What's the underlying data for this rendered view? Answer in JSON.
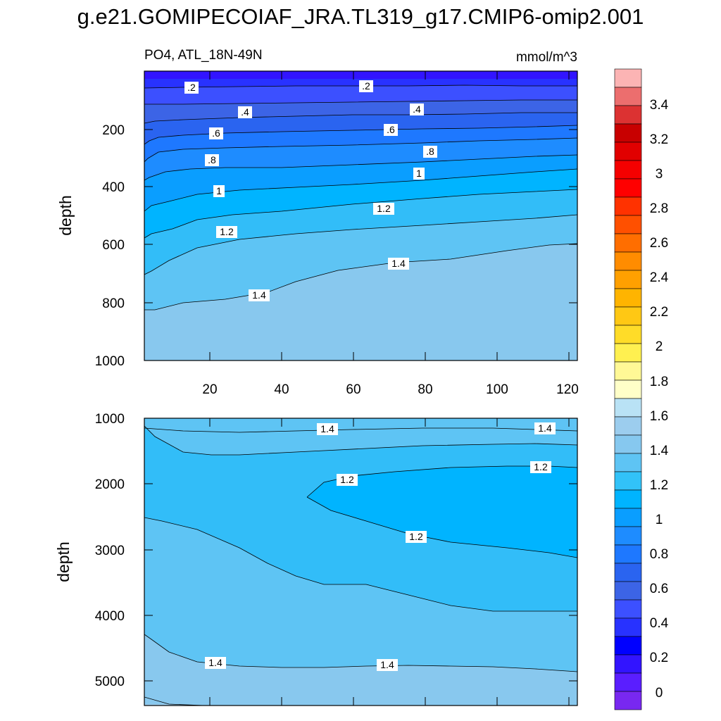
{
  "title": "g.e21.GOMIPECOIAF_JRA.TL319_g17.CMIP6-omip2.001",
  "chart_data": [
    {
      "type": "contour",
      "panel": "upper",
      "subtitle_left": "PO4, ATL_18N-49N",
      "subtitle_right": "mmol/m^3",
      "ylabel": "depth",
      "xlabel": "",
      "xlim": [
        1,
        122
      ],
      "ylim": [
        1000,
        0
      ],
      "x_ticks": [
        "20",
        "40",
        "60",
        "80",
        "100",
        "120"
      ],
      "y_ticks": [
        "200",
        "400",
        "600",
        "800",
        "1000"
      ],
      "contour_labels": [
        ".2",
        ".2",
        ".4",
        ".4",
        ".6",
        ".6",
        ".8",
        ".8",
        "1",
        "1",
        "1.2",
        "1.2",
        "1.4",
        "1.4"
      ],
      "isolines": [
        {
          "level": 0.2,
          "x": [
            1,
            122
          ],
          "depth": [
            55,
            55
          ]
        },
        {
          "level": 0.4,
          "x": [
            1,
            122
          ],
          "depth": [
            130,
            140
          ]
        },
        {
          "level": 0.6,
          "x": [
            1,
            122
          ],
          "depth": [
            210,
            195
          ]
        },
        {
          "level": 0.8,
          "x": [
            1,
            122
          ],
          "depth": [
            300,
            260
          ]
        },
        {
          "level": 1.0,
          "x": [
            1,
            122
          ],
          "depth": [
            420,
            360
          ]
        },
        {
          "level": 1.2,
          "x": [
            1,
            122
          ],
          "depth": [
            560,
            500
          ]
        },
        {
          "level": 1.4,
          "x": [
            1,
            122
          ],
          "depth": [
            800,
            600
          ]
        }
      ]
    },
    {
      "type": "contour",
      "panel": "lower",
      "ylabel": "depth",
      "xlabel": "",
      "xlim": [
        1,
        122
      ],
      "ylim": [
        5350,
        1000
      ],
      "y_ticks": [
        "1000",
        "2000",
        "3000",
        "4000",
        "5000"
      ],
      "contour_labels": [
        "1.4",
        "1.4",
        "1.2",
        "1.2",
        "1.2",
        "1.4",
        "1.4"
      ],
      "regions": [
        {
          "level": 1.2,
          "description": "core between 1.0 and 1.2 mmol/m^3, 2000-3200 m, x 46-122"
        }
      ]
    }
  ],
  "colorbar": {
    "labels": [
      "3.4",
      "3.2",
      "3",
      "2.8",
      "2.6",
      "2.4",
      "2.2",
      "2",
      "1.8",
      "1.6",
      "1.4",
      "1.2",
      "1",
      "0.8",
      "0.6",
      "0.4",
      "0.2",
      "0"
    ],
    "colors": [
      "#fcb4b4",
      "#ec6e6e",
      "#dc3232",
      "#c80000",
      "#e10000",
      "#f50000",
      "#ff0000",
      "#ff3200",
      "#ff5000",
      "#ff6e00",
      "#ff8c00",
      "#ffa000",
      "#ffb400",
      "#ffc814",
      "#ffdc28",
      "#fff050",
      "#fff896",
      "#ffffc8",
      "#b9e2f5",
      "#9ccdee",
      "#86c8ef",
      "#5ec4f4",
      "#32c2f8",
      "#00b4ff",
      "#0a9eff",
      "#1e8cff",
      "#1e78ff",
      "#2a64f0",
      "#3c64e6",
      "#3c50ff",
      "#2832ff",
      "#0000ff",
      "#3214ff",
      "#5a1eff",
      "#7828f0"
    ]
  }
}
